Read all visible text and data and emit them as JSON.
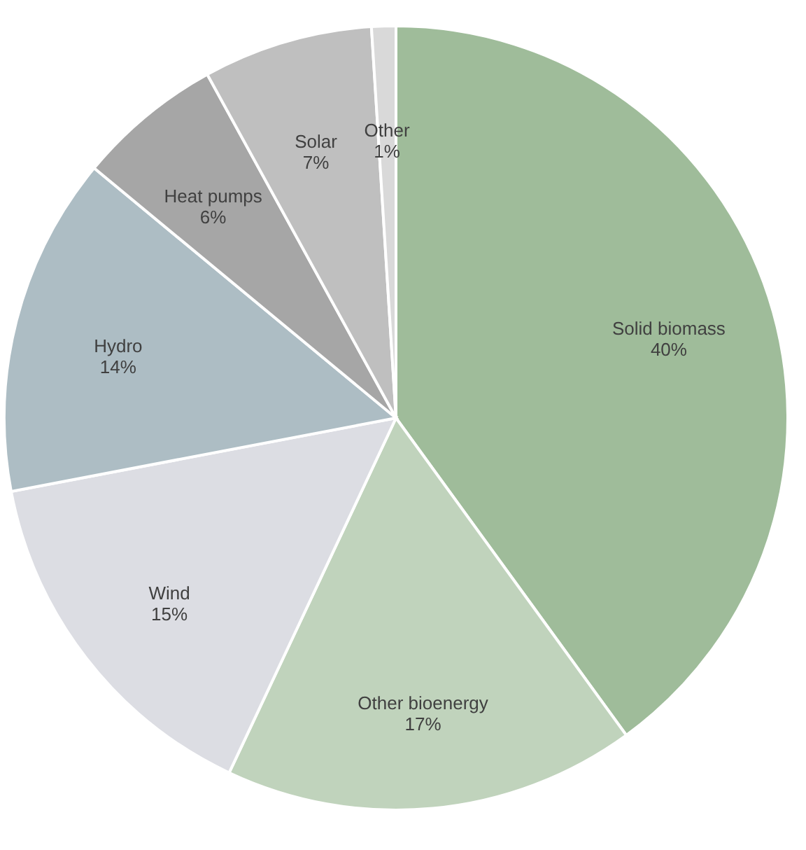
{
  "chart_data": {
    "type": "pie",
    "categories": [
      "Solid biomass",
      "Other bioenergy",
      "Wind",
      "Hydro",
      "Heat pumps",
      "Solar",
      "Other"
    ],
    "values": [
      40,
      17,
      15,
      14,
      6,
      7,
      1
    ],
    "value_labels": [
      "40%",
      "17%",
      "15%",
      "14%",
      "6%",
      "7%",
      "1%"
    ],
    "colors": [
      "#9fbc9a",
      "#c0d3bc",
      "#dcdde3",
      "#adbdc4",
      "#a6a6a6",
      "#bfbfbf",
      "#d9d9d9"
    ],
    "legend": false
  }
}
